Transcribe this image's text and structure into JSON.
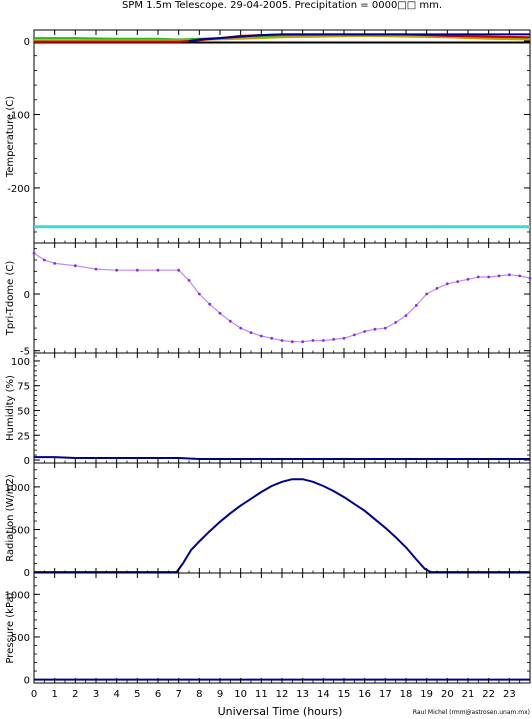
{
  "title": "SPM 1.5m Telescope. 29-04-2005. Precipitation = 0000□□ mm.",
  "credit": "Raul Michel (rmm@astrosen.unam.mx)",
  "xaxis": {
    "label": "Universal Time (hours)",
    "ticks": [
      "0",
      "1",
      "2",
      "3",
      "4",
      "5",
      "6",
      "7",
      "8",
      "9",
      "10",
      "11",
      "12",
      "13",
      "14",
      "15",
      "16",
      "17",
      "18",
      "19",
      "20",
      "21",
      "22",
      "23"
    ],
    "range": [
      0,
      24
    ]
  },
  "colors": {
    "black": "#000000",
    "red": "#cc0000",
    "green": "#22bb22",
    "navy": "#000090",
    "yellow": "#c8a000",
    "cyan": "#40d8d8",
    "purple": "#8a2be2"
  },
  "chart_data": [
    {
      "type": "line",
      "ylabel": "Temperature (C)",
      "ylim": [
        -275,
        15
      ],
      "ytick_labels": [
        "0",
        "-100",
        "-200"
      ],
      "ytick_values": [
        0,
        -100,
        -200
      ],
      "series": [
        {
          "color": "black",
          "x": [
            0,
            24
          ],
          "y": [
            -2,
            -2
          ]
        },
        {
          "color": "cyan",
          "x": [
            0,
            24
          ],
          "y": [
            -253,
            -253
          ]
        },
        {
          "color": "green",
          "x": [
            0,
            2,
            4,
            6,
            7,
            8,
            10,
            12,
            14,
            16,
            18,
            20,
            22,
            24
          ],
          "y": [
            4,
            4,
            3,
            3,
            2,
            3,
            5,
            7,
            8,
            8,
            7,
            5,
            4,
            3
          ]
        },
        {
          "color": "yellow",
          "x": [
            0,
            4,
            7,
            10,
            12,
            14,
            16,
            18,
            20,
            22,
            24
          ],
          "y": [
            1,
            1,
            1,
            3,
            5,
            6,
            7,
            6,
            5,
            3,
            2
          ]
        },
        {
          "color": "red",
          "x": [
            0,
            2,
            4,
            6,
            7,
            8,
            9,
            10,
            11,
            12,
            13,
            14,
            15,
            16,
            17,
            18,
            19,
            20,
            22,
            24
          ],
          "y": [
            -1,
            -1,
            -1,
            -1,
            -1,
            1,
            4,
            7,
            8,
            9,
            9,
            9,
            9,
            9,
            9,
            9,
            8,
            7,
            6,
            5
          ]
        },
        {
          "color": "navy",
          "x": [
            7.5,
            8,
            9,
            10,
            11,
            12,
            13,
            14,
            15,
            16,
            17,
            18,
            19,
            20,
            22,
            24
          ],
          "y": [
            0,
            2,
            4,
            6,
            8,
            9,
            9,
            9,
            9,
            9,
            9,
            9,
            9,
            9,
            9,
            9
          ]
        }
      ]
    },
    {
      "type": "scatter",
      "ylabel": "Tpri-Tdome (C)",
      "ylim": [
        -5.2,
        4.5
      ],
      "ytick_labels": [
        "0",
        "-5"
      ],
      "ytick_values": [
        0,
        -5
      ],
      "series": [
        {
          "color": "purple",
          "x": [
            0,
            0.5,
            1,
            2,
            3,
            4,
            5,
            6,
            7,
            7.5,
            8,
            8.5,
            9,
            9.5,
            10,
            10.5,
            11,
            11.5,
            12,
            12.5,
            13,
            13.5,
            14,
            14.5,
            15,
            15.5,
            16,
            16.5,
            17,
            17.5,
            18,
            18.5,
            19,
            19.5,
            20,
            20.5,
            21,
            21.5,
            22,
            22.5,
            23,
            23.5,
            24
          ],
          "y": [
            3.6,
            3.0,
            2.7,
            2.5,
            2.2,
            2.1,
            2.1,
            2.1,
            2.1,
            1.2,
            0.0,
            -0.9,
            -1.7,
            -2.4,
            -3.0,
            -3.4,
            -3.7,
            -3.9,
            -4.1,
            -4.2,
            -4.2,
            -4.1,
            -4.1,
            -4.0,
            -3.9,
            -3.6,
            -3.3,
            -3.1,
            -3.0,
            -2.5,
            -1.9,
            -1.0,
            0.0,
            0.5,
            0.9,
            1.1,
            1.3,
            1.5,
            1.5,
            1.6,
            1.7,
            1.6,
            1.4
          ]
        }
      ]
    },
    {
      "type": "line",
      "ylabel": "Humidity (%)",
      "ylim": [
        -3,
        108
      ],
      "ytick_labels": [
        "0",
        "25",
        "50",
        "75",
        "100"
      ],
      "ytick_values": [
        0,
        25,
        50,
        75,
        100
      ],
      "series": [
        {
          "color": "navy",
          "x": [
            0,
            1,
            2,
            3,
            4,
            5,
            6,
            7,
            8,
            10,
            12,
            14,
            16,
            18,
            20,
            22,
            23,
            24
          ],
          "y": [
            3,
            3,
            2,
            2,
            2,
            2,
            2,
            2,
            1,
            1,
            1,
            1,
            1,
            1,
            1,
            1,
            1,
            1
          ]
        }
      ]
    },
    {
      "type": "line",
      "ylabel": "Radiation (W/m2)",
      "ylim": [
        -10,
        1280
      ],
      "ytick_labels": [
        "0",
        "500",
        "1000"
      ],
      "ytick_values": [
        0,
        500,
        1000
      ],
      "series": [
        {
          "color": "navy",
          "x": [
            0,
            6.9,
            7.2,
            7.6,
            8.0,
            8.5,
            9,
            9.5,
            10,
            10.5,
            11,
            11.5,
            12,
            12.5,
            13,
            13.5,
            14,
            14.5,
            15,
            15.5,
            16,
            16.5,
            17,
            17.5,
            18,
            18.5,
            18.9,
            19.2,
            24
          ],
          "y": [
            0,
            0,
            100,
            260,
            360,
            480,
            590,
            690,
            780,
            860,
            940,
            1010,
            1060,
            1090,
            1090,
            1060,
            1010,
            950,
            880,
            800,
            720,
            620,
            520,
            410,
            290,
            150,
            40,
            0,
            0
          ]
        }
      ]
    },
    {
      "type": "line",
      "ylabel": "Pressure (kPa)",
      "ylim": [
        -40,
        1250
      ],
      "ytick_labels": [
        "0",
        "500",
        "1000"
      ],
      "ytick_values": [
        0,
        500,
        1000
      ],
      "series": [
        {
          "color": "navy",
          "x": [
            0,
            24
          ],
          "y": [
            0,
            0
          ]
        }
      ]
    }
  ]
}
